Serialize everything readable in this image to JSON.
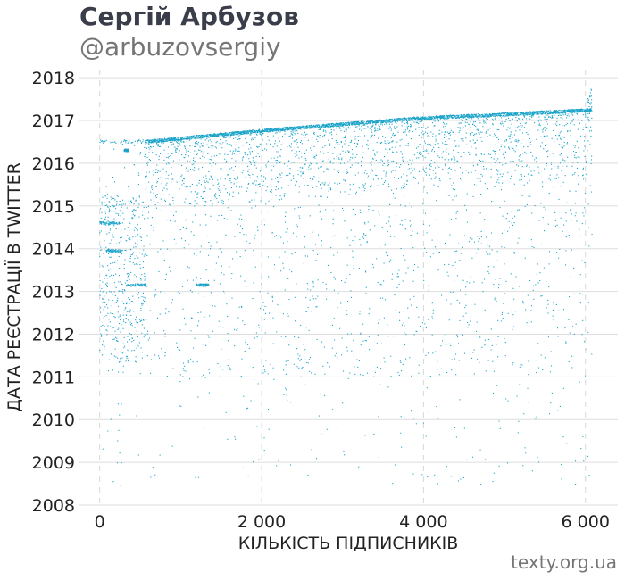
{
  "header": {
    "title": "Сергій Арбузов",
    "subtitle": "@arbuzovsergiy"
  },
  "footer": {
    "source": "texty.org.ua"
  },
  "chart_data": {
    "type": "scatter",
    "xlabel": "КІЛЬКІСТЬ ПІДПИСНИКІВ",
    "ylabel": "ДАТА РЕЄСТРАЦІЇ В TWITTER",
    "xlim": [
      -250,
      6400
    ],
    "ylim": [
      2008,
      2018.4
    ],
    "x_ticks": [
      0,
      2000,
      4000,
      6000
    ],
    "x_tick_labels": [
      "0",
      "2 000",
      "4 000",
      "6 000"
    ],
    "y_ticks": [
      2008,
      2009,
      2010,
      2011,
      2012,
      2013,
      2014,
      2015,
      2016,
      2017,
      2018
    ],
    "y_tick_labels": [
      "2008",
      "2009",
      "2010",
      "2011",
      "2012",
      "2013",
      "2014",
      "2015",
      "2016",
      "2017",
      "2018"
    ],
    "grid": {
      "horizontal": true,
      "vertical_dashed": true
    },
    "point_color": "#1aa3c8",
    "point_count": 6080,
    "upper_edge": [
      [
        600,
        2016.55
      ],
      [
        1000,
        2016.62
      ],
      [
        2000,
        2016.8
      ],
      [
        3000,
        2016.95
      ],
      [
        4000,
        2017.1
      ],
      [
        5000,
        2017.18
      ],
      [
        6000,
        2017.28
      ]
    ],
    "clusters": [
      {
        "x": [
          0,
          250
        ],
        "y": 2014.6
      },
      {
        "x": [
          80,
          280
        ],
        "y": 2013.95
      },
      {
        "x": [
          330,
          580
        ],
        "y": 2013.15
      },
      {
        "x": [
          1200,
          1350
        ],
        "y": 2013.15
      },
      {
        "x": [
          300,
          360
        ],
        "y": 2016.3
      }
    ]
  }
}
